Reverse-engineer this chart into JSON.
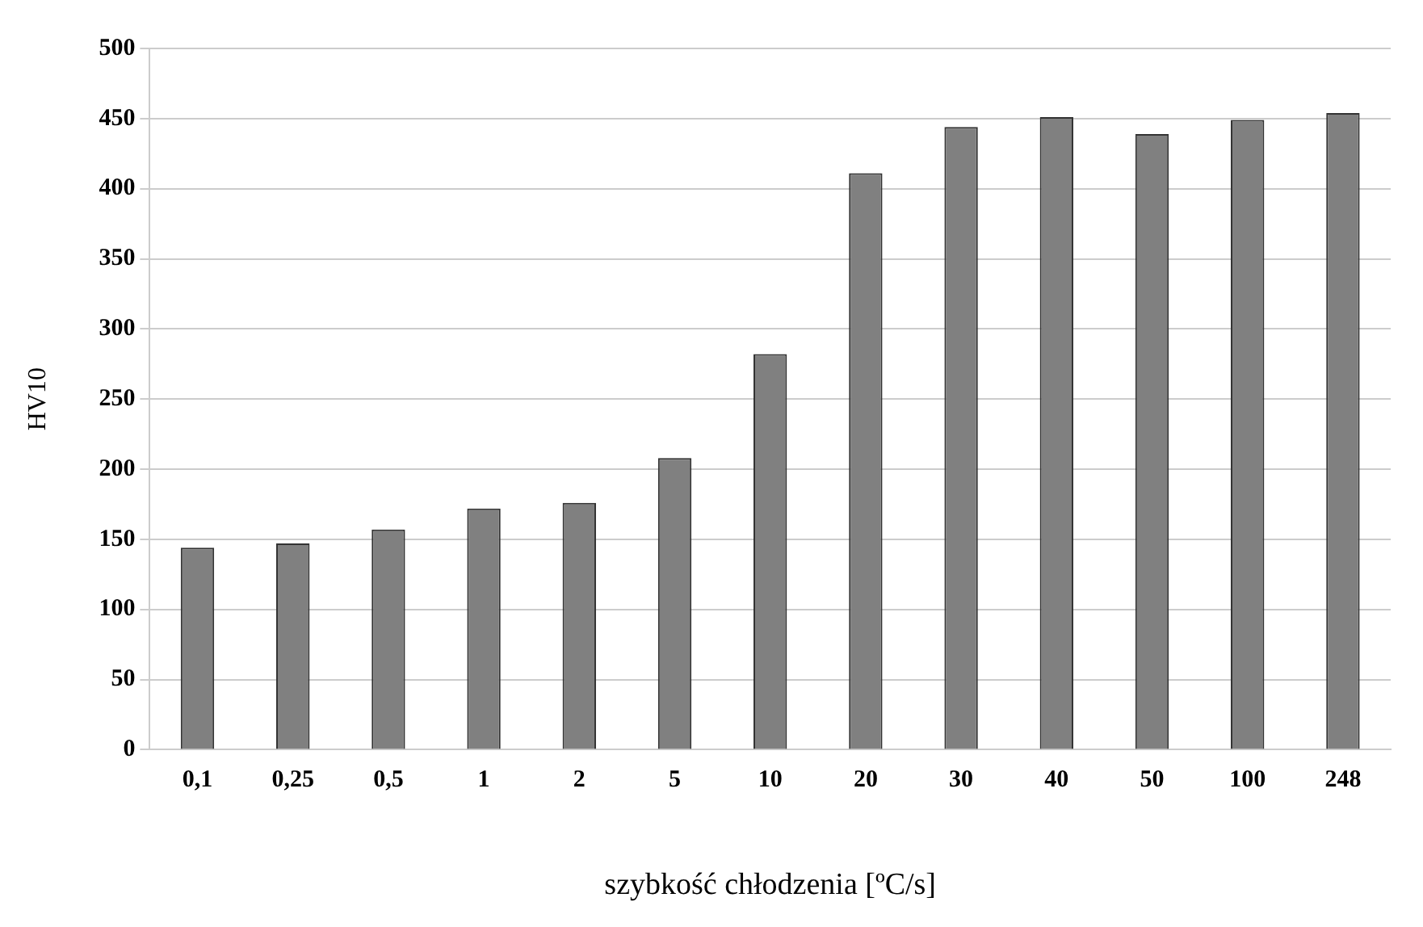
{
  "chart_data": {
    "type": "bar",
    "xlabel": "szybkość chłodzenia [ºC/s]",
    "ylabel": "HV10",
    "categories": [
      "0,1",
      "0,25",
      "0,5",
      "1",
      "2",
      "5",
      "10",
      "20",
      "30",
      "40",
      "50",
      "100",
      "248"
    ],
    "values": [
      144,
      147,
      157,
      172,
      176,
      208,
      282,
      411,
      444,
      451,
      439,
      449,
      454
    ],
    "color": "#808080",
    "ylim": [
      0,
      500
    ],
    "yticks": [
      0,
      50,
      100,
      150,
      200,
      250,
      300,
      350,
      400,
      450,
      500
    ],
    "grid": "y",
    "legend": false
  }
}
